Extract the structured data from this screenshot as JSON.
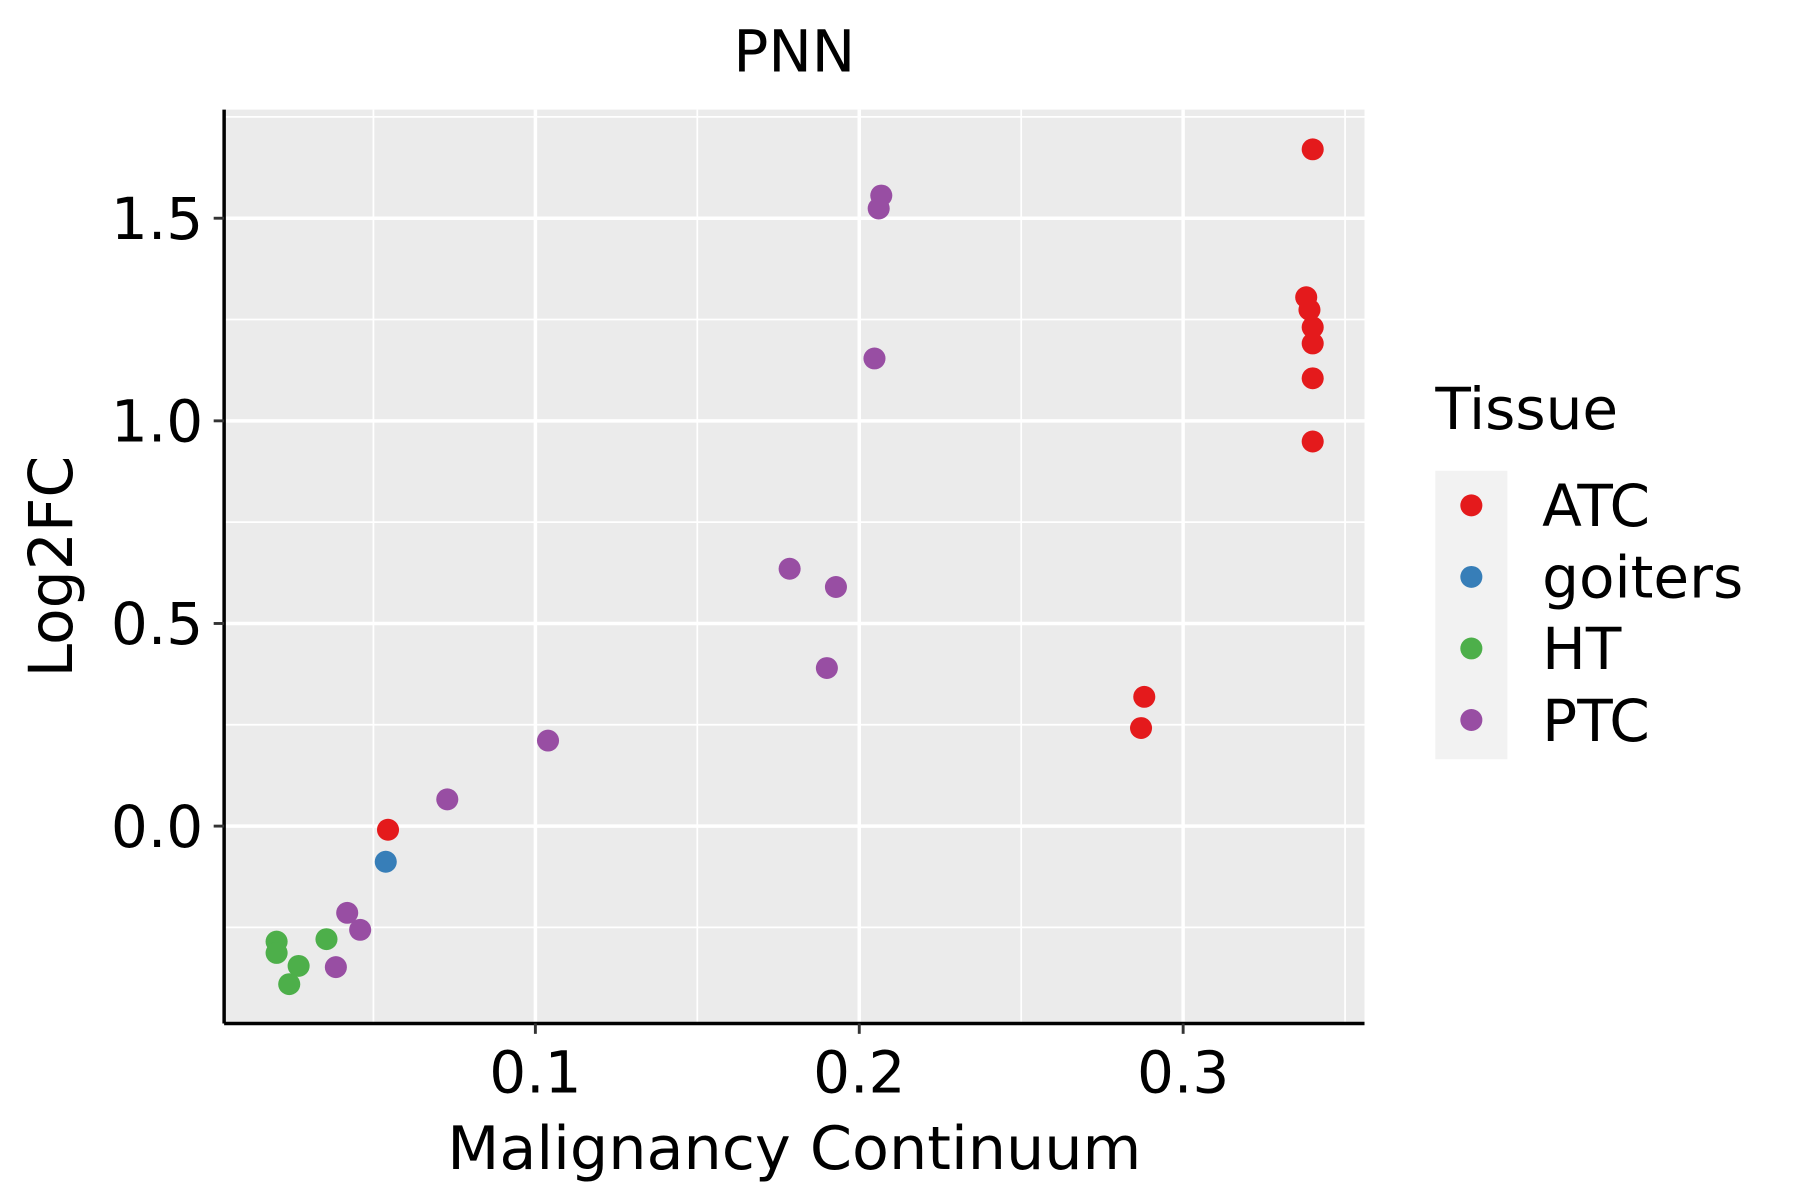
{
  "chart_data": {
    "type": "scatter",
    "title": "PNN",
    "xlabel": "Malignancy Continuum",
    "ylabel": "Log2FC",
    "xlim": [
      0.0039,
      0.356
    ],
    "ylim": [
      -0.487,
      1.768
    ],
    "x_ticks": [
      0.1,
      0.2,
      0.3
    ],
    "x_tick_labels": [
      "0.1",
      "0.2",
      "0.3"
    ],
    "y_ticks": [
      0.0,
      0.5,
      1.0,
      1.5
    ],
    "y_tick_labels": [
      "0.0",
      "0.5",
      "1.0",
      "1.5"
    ],
    "grid": true,
    "legend": {
      "title": "Tissue",
      "placement": "right"
    },
    "series": [
      {
        "name": "ATC",
        "color": "#E41A1C",
        "points": [
          [
            0.34,
            1.67
          ],
          [
            0.338,
            1.305
          ],
          [
            0.339,
            1.274
          ],
          [
            0.34,
            1.231
          ],
          [
            0.34,
            1.191
          ],
          [
            0.34,
            1.105
          ],
          [
            0.34,
            0.949
          ],
          [
            0.288,
            0.319
          ],
          [
            0.287,
            0.242
          ],
          [
            0.0545,
            -0.009
          ]
        ]
      },
      {
        "name": "goiters",
        "color": "#377EB8",
        "points": [
          [
            0.0538,
            -0.088
          ]
        ]
      },
      {
        "name": "HT",
        "color": "#4DAF4A",
        "points": [
          [
            0.0201,
            -0.285
          ],
          [
            0.0201,
            -0.313
          ],
          [
            0.0269,
            -0.345
          ],
          [
            0.024,
            -0.39
          ],
          [
            0.0355,
            -0.279
          ]
        ]
      },
      {
        "name": "PTC",
        "color": "#984EA3",
        "points": [
          [
            0.2068,
            1.556
          ],
          [
            0.206,
            1.524
          ],
          [
            0.2047,
            1.154
          ],
          [
            0.1785,
            0.635
          ],
          [
            0.1928,
            0.59
          ],
          [
            0.19,
            0.39
          ],
          [
            0.1039,
            0.211
          ],
          [
            0.0728,
            0.066
          ],
          [
            0.0419,
            -0.214
          ],
          [
            0.0459,
            -0.256
          ],
          [
            0.0384,
            -0.348
          ]
        ]
      }
    ]
  }
}
